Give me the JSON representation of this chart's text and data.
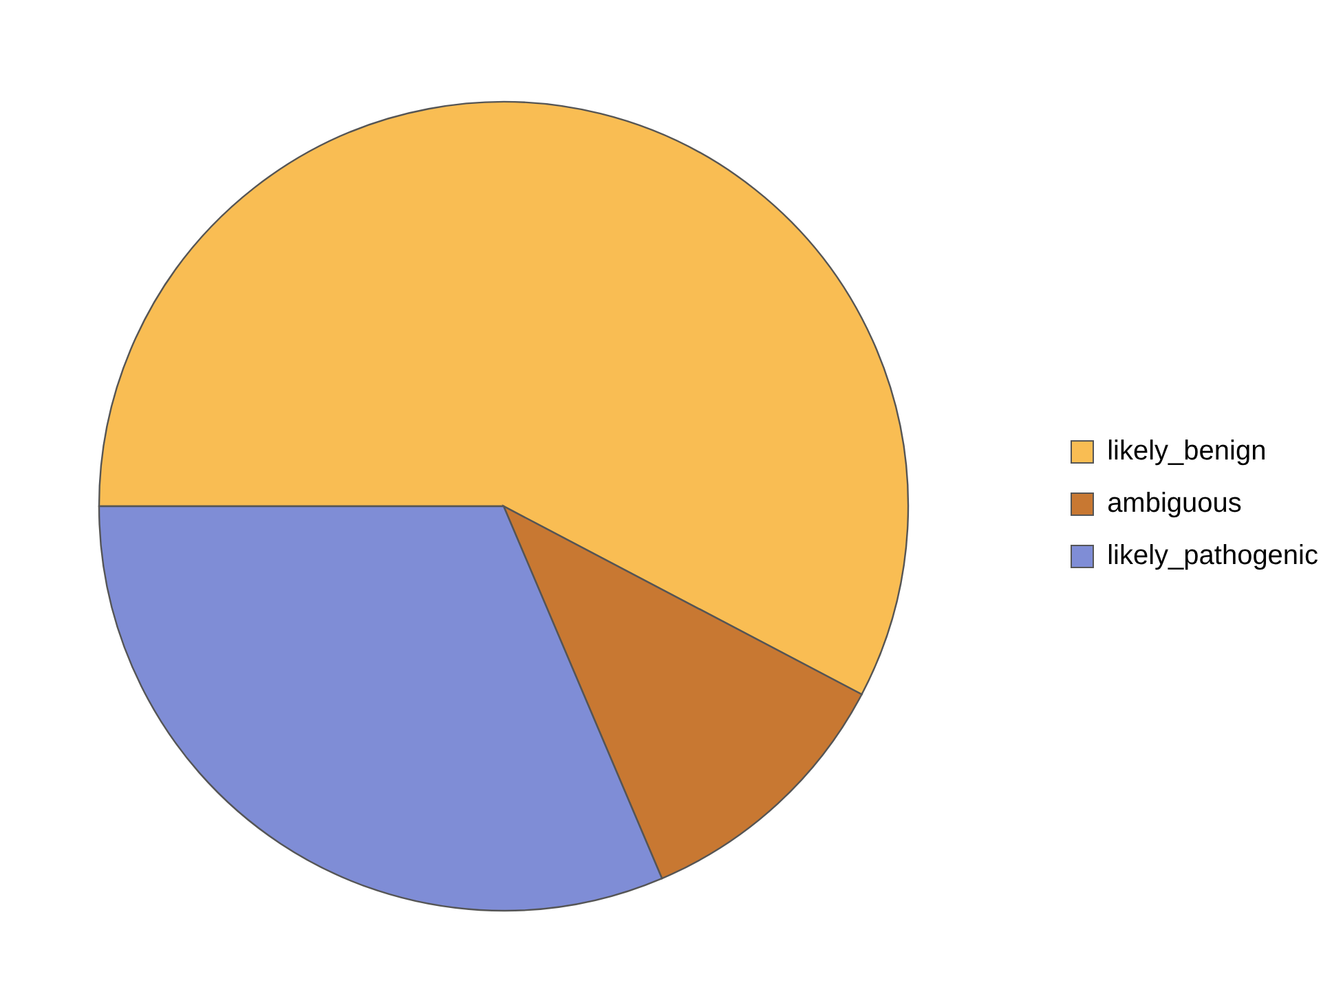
{
  "chart_data": {
    "type": "pie",
    "categories": [
      "likely_benign",
      "ambiguous",
      "likely_pathogenic"
    ],
    "values": [
      57.7,
      10.9,
      31.4
    ],
    "colors": [
      "#f9bd53",
      "#c87832",
      "#7f8dd6"
    ],
    "legend": "right"
  }
}
